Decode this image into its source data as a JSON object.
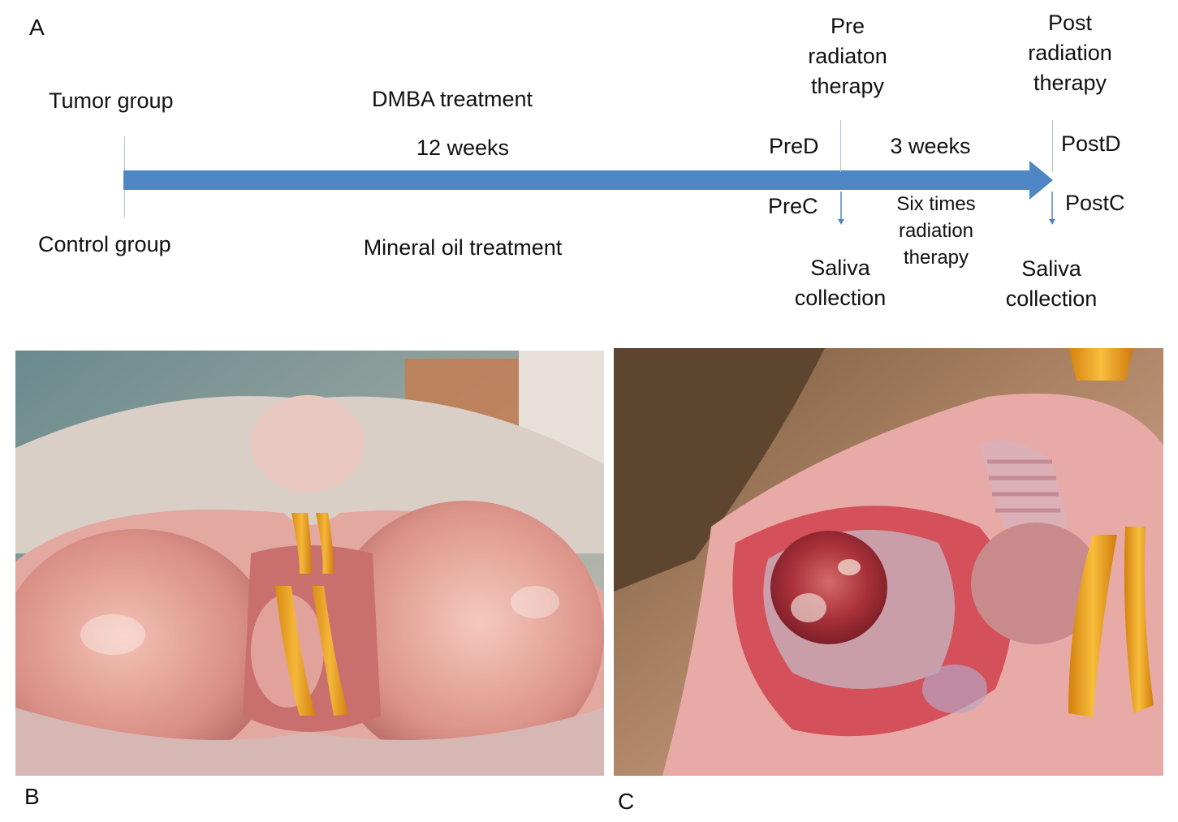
{
  "panels": {
    "a": "A",
    "b": "B",
    "c": "C"
  },
  "timeline": {
    "tumor_group": "Tumor group",
    "control_group": "Control group",
    "dmba_treatment": "DMBA treatment",
    "duration_12": "12 weeks",
    "mineral_oil": "Mineral oil treatment",
    "pre_therapy": [
      "Pre",
      "radiaton",
      "therapy"
    ],
    "post_therapy": [
      "Post",
      "radiation",
      "therapy"
    ],
    "pre_d": "PreD",
    "pre_c": "PreC",
    "duration_3": "3 weeks",
    "six_times": [
      "Six times",
      "radiation",
      "therapy"
    ],
    "post_d": "PostD",
    "post_c": "PostC",
    "saliva_pre": [
      "Saliva",
      "collection"
    ],
    "saliva_post": [
      "Saliva",
      "collection"
    ],
    "arrow_color": "#4f86c6"
  }
}
